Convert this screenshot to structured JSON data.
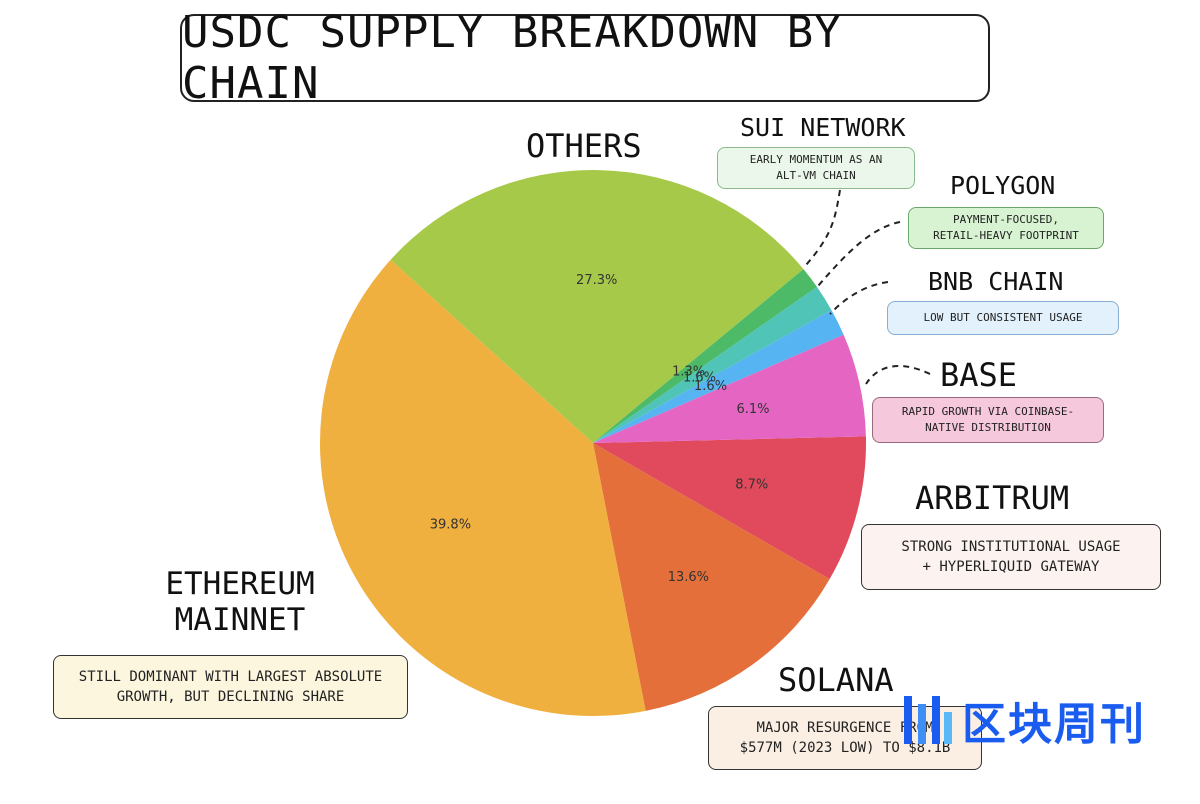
{
  "chart_data": {
    "type": "pie",
    "title": "USDC SUPPLY BREAKDOWN BY CHAIN",
    "slices": [
      {
        "label": "ARBITRUM",
        "value": 8.7,
        "pct_label": "8.7%",
        "color": "#e04a5c"
      },
      {
        "label": "SOLANA",
        "value": 13.6,
        "pct_label": "13.6%",
        "color": "#e46f3a"
      },
      {
        "label": "ETHEREUM MAINNET",
        "value": 39.8,
        "pct_label": "39.8%",
        "color": "#f0b03f"
      },
      {
        "label": "OTHERS",
        "value": 27.3,
        "pct_label": "27.3%",
        "color": "#a6c94a"
      },
      {
        "label": "SUI NETWORK",
        "value": 1.3,
        "pct_label": "1.3%",
        "color": "#4cba66"
      },
      {
        "label": "POLYGON",
        "value": 1.6,
        "pct_label": "1.6%",
        "color": "#4fc4b7"
      },
      {
        "label": "BNB CHAIN",
        "value": 1.6,
        "pct_label": "1.6%",
        "color": "#56b4f2"
      },
      {
        "label": "BASE",
        "value": 6.1,
        "pct_label": "6.1%",
        "color": "#e466c2"
      }
    ]
  },
  "annotations": {
    "others": {
      "name": "OTHERS"
    },
    "sui": {
      "name": "SUI NETWORK",
      "note_line1": "EARLY MOMENTUM AS AN",
      "note_line2": "ALT-VM CHAIN",
      "bg": "#eaf7ea"
    },
    "polygon": {
      "name": "POLYGON",
      "note_line1": "PAYMENT-FOCUSED,",
      "note_line2": "RETAIL-HEAVY FOOTPRINT",
      "bg": "#d7f3d2"
    },
    "bnb": {
      "name": "BNB CHAIN",
      "note_line1": "LOW BUT CONSISTENT USAGE",
      "bg": "#e3f1fc"
    },
    "base": {
      "name": "BASE",
      "note_line1": "RAPID GROWTH VIA COINBASE-",
      "note_line2": "NATIVE DISTRIBUTION",
      "bg": "#f5c8dc"
    },
    "arbitrum": {
      "name": "ARBITRUM",
      "note_line1": "STRONG INSTITUTIONAL USAGE",
      "note_line2": "+ HYPERLIQUID GATEWAY",
      "bg": "#fcf3f1"
    },
    "ethereum": {
      "name_line1": "ETHEREUM",
      "name_line2": "MAINNET",
      "note_line1": "STILL DOMINANT WITH LARGEST ABSOLUTE",
      "note_line2": "GROWTH, BUT DECLINING SHARE",
      "bg": "#fdf6de"
    },
    "solana": {
      "name": "SOLANA",
      "note_line1": "MAJOR RESURGENCE FROM",
      "note_line2": "$577M (2023 LOW) TO $8.1B",
      "bg": "#fbefe4"
    }
  },
  "watermark": {
    "text": "区块周刊",
    "color": "#1a5cf0"
  }
}
